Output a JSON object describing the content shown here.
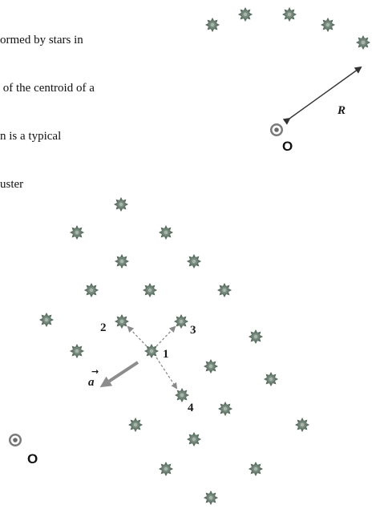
{
  "caption": {
    "lines": [
      "ormed by stars in",
      " of the centroid of a",
      "n is a typical",
      "uster"
    ]
  },
  "top_figure": {
    "radius_label": "R",
    "origin_label": "O"
  },
  "bottom_figure": {
    "origin_label": "O",
    "acceleration_label": "a",
    "neighbor_labels": [
      "1",
      "2",
      "3",
      "4"
    ]
  },
  "colors": {
    "star": "#5b6f62",
    "star_center": "#9aa99f",
    "arrow": "#333333",
    "dashed_arrow": "#8a8a8a",
    "accel_arrow": "#8c8c8c",
    "origin_ring": "#777777"
  },
  "icons": {
    "star": "star-icon",
    "origin": "origin-marker-icon"
  }
}
